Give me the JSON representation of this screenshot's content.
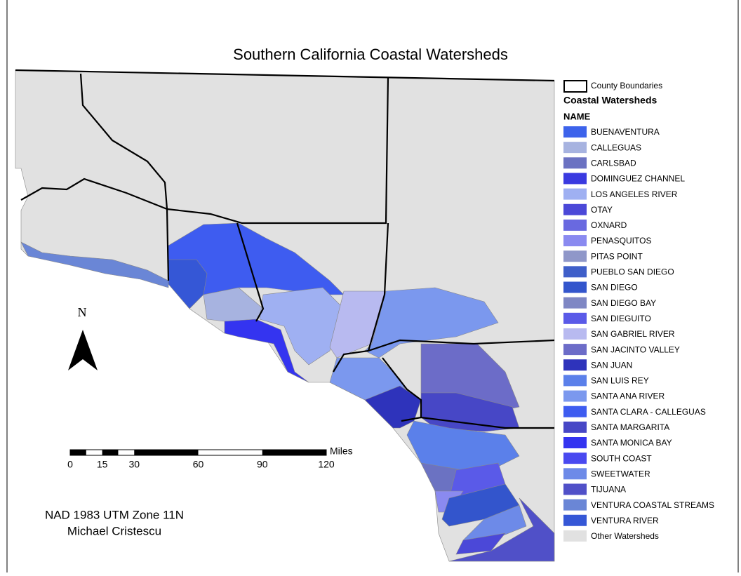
{
  "title": "Southern California Coastal Watersheds",
  "legend": {
    "boundary_label": "County Boundaries",
    "heading": "Coastal Watersheds",
    "field": "NAME",
    "items": [
      {
        "name": "BUENAVENTURA",
        "color": "#3d63eb"
      },
      {
        "name": "CALLEGUAS",
        "color": "#a7b3e0"
      },
      {
        "name": "CARLSBAD",
        "color": "#6b72c2"
      },
      {
        "name": "DOMINGUEZ CHANNEL",
        "color": "#3a3ae0"
      },
      {
        "name": "LOS ANGELES RIVER",
        "color": "#9fb0f2"
      },
      {
        "name": "OTAY",
        "color": "#4b48d8"
      },
      {
        "name": "OXNARD",
        "color": "#6969e0"
      },
      {
        "name": "PENASQUITOS",
        "color": "#8a8af0"
      },
      {
        "name": "PITAS POINT",
        "color": "#8f97c9"
      },
      {
        "name": "PUEBLO SAN DIEGO",
        "color": "#3f5fc9"
      },
      {
        "name": "SAN DIEGO",
        "color": "#3355cc"
      },
      {
        "name": "SAN DIEGO BAY",
        "color": "#7f87c4"
      },
      {
        "name": "SAN DIEGUITO",
        "color": "#5a5ae8"
      },
      {
        "name": "SAN GABRIEL RIVER",
        "color": "#b8baf0"
      },
      {
        "name": "SAN JACINTO VALLEY",
        "color": "#6c6cc8"
      },
      {
        "name": "SAN JUAN",
        "color": "#2e33bb"
      },
      {
        "name": "SAN LUIS REY",
        "color": "#5b80ea"
      },
      {
        "name": "SANTA ANA RIVER",
        "color": "#7b98ee"
      },
      {
        "name": "SANTA CLARA - CALLEGUAS",
        "color": "#3e5cf0"
      },
      {
        "name": "SANTA MARGARITA",
        "color": "#4747c6"
      },
      {
        "name": "SANTA MONICA BAY",
        "color": "#3434f0"
      },
      {
        "name": "SOUTH COAST",
        "color": "#4949f0"
      },
      {
        "name": "SWEETWATER",
        "color": "#6d8ae8"
      },
      {
        "name": "TIJUANA",
        "color": "#5050c8"
      },
      {
        "name": "VENTURA COASTAL STREAMS",
        "color": "#6a86d6"
      },
      {
        "name": "VENTURA RIVER",
        "color": "#3557d6"
      },
      {
        "name": "Other Watersheds",
        "color": "#e1e1e1"
      }
    ]
  },
  "north_label": "N",
  "scale_bar": {
    "unit": "Miles",
    "ticks": [
      0,
      15,
      30,
      60,
      90,
      120
    ]
  },
  "credits": [
    "NAD 1983 UTM Zone 11N",
    "Michael Cristescu"
  ]
}
